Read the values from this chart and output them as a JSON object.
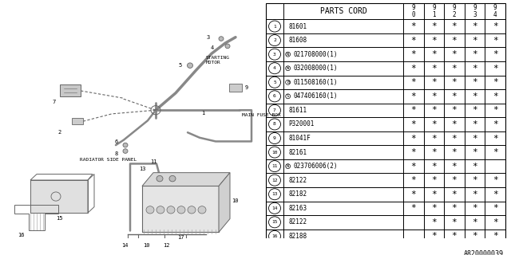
{
  "bg_color": "#ffffff",
  "table_border_color": "#000000",
  "title_text": "PARTS CORD",
  "col_headers": [
    "9\n0",
    "9\n1",
    "9\n2",
    "9\n3",
    "9\n4"
  ],
  "rows": [
    {
      "num": "1",
      "code": "81601",
      "prefix": "",
      "stars": [
        true,
        true,
        true,
        true,
        true
      ]
    },
    {
      "num": "2",
      "code": "81608",
      "prefix": "",
      "stars": [
        true,
        true,
        true,
        true,
        true
      ]
    },
    {
      "num": "3",
      "code": "021708000(1)",
      "prefix": "N",
      "stars": [
        true,
        true,
        true,
        true,
        true
      ]
    },
    {
      "num": "4",
      "code": "032008000(1)",
      "prefix": "W",
      "stars": [
        true,
        true,
        true,
        true,
        true
      ]
    },
    {
      "num": "5",
      "code": "011508160(1)",
      "prefix": "B",
      "stars": [
        true,
        true,
        true,
        true,
        true
      ]
    },
    {
      "num": "6",
      "code": "047406160(1)",
      "prefix": "S",
      "stars": [
        true,
        true,
        true,
        true,
        true
      ]
    },
    {
      "num": "7",
      "code": "81611",
      "prefix": "",
      "stars": [
        true,
        true,
        true,
        true,
        true
      ]
    },
    {
      "num": "8",
      "code": "P320001",
      "prefix": "",
      "stars": [
        true,
        true,
        true,
        true,
        true
      ]
    },
    {
      "num": "9",
      "code": "81041F",
      "prefix": "",
      "stars": [
        true,
        true,
        true,
        true,
        true
      ]
    },
    {
      "num": "10",
      "code": "82161",
      "prefix": "",
      "stars": [
        true,
        true,
        true,
        true,
        true
      ]
    },
    {
      "num": "11",
      "code": "023706006(2)",
      "prefix": "N",
      "stars": [
        true,
        true,
        true,
        true,
        false
      ]
    },
    {
      "num": "12",
      "code": "82122",
      "prefix": "",
      "stars": [
        true,
        true,
        true,
        true,
        true
      ]
    },
    {
      "num": "13",
      "code": "82182",
      "prefix": "",
      "stars": [
        true,
        true,
        true,
        true,
        true
      ]
    },
    {
      "num": "14",
      "code": "82163",
      "prefix": "",
      "stars": [
        true,
        true,
        true,
        true,
        true
      ]
    },
    {
      "num": "15",
      "code": "82122",
      "prefix": "",
      "stars": [
        false,
        true,
        true,
        true,
        true
      ]
    },
    {
      "num": "16",
      "code": "82188",
      "prefix": "",
      "stars": [
        false,
        true,
        true,
        true,
        true
      ]
    }
  ],
  "footer_text": "A820000039",
  "label_starting_motor": "STARTING\nMOTOR",
  "label_main_fuse_box": "MAIN FUSE BOX",
  "label_radiator_side_panel": "RADIATOR SIDE PANEL"
}
